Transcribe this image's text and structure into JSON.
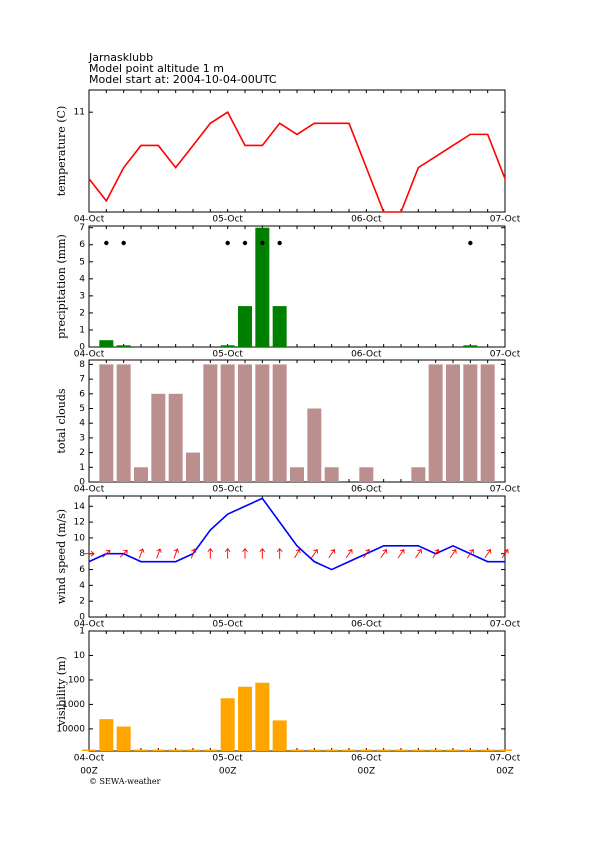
{
  "header": {
    "station": "Jarnasklubb",
    "altitude": "Model point altitude  1 m",
    "start": "Model start at: 2004-10-04-00UTC"
  },
  "footer": "© SEWA-weather",
  "chart_data": [
    {
      "type": "line",
      "y_label": "temperature (C)",
      "color": "#ff0000",
      "categories": [
        "04-Oct",
        null,
        null,
        null,
        null,
        null,
        null,
        null,
        "05-Oct",
        null,
        null,
        null,
        null,
        null,
        null,
        null,
        "06-Oct",
        null,
        null,
        null,
        null,
        null,
        null,
        null,
        "07-Oct"
      ],
      "values": [
        5,
        3,
        6,
        8,
        8,
        6,
        8,
        10,
        11,
        8,
        8,
        10,
        9,
        10,
        10,
        10,
        6,
        2,
        2,
        6,
        7,
        8,
        9,
        9,
        5
      ],
      "ylim": [
        2,
        13
      ],
      "yticks": [
        11
      ]
    },
    {
      "type": "bar",
      "y_label": "precipitation (mm)",
      "color": "#008000",
      "symbol_color": "#000000",
      "categories": [
        "04-Oct",
        null,
        null,
        null,
        null,
        null,
        null,
        null,
        "05-Oct",
        null,
        null,
        null,
        null,
        null,
        null,
        null,
        "06-Oct",
        null,
        null,
        null,
        null,
        null,
        null,
        null,
        "07-Oct"
      ],
      "values": [
        0,
        0.4,
        0.1,
        0,
        0,
        0,
        0,
        0,
        0.1,
        2.4,
        7,
        2.4,
        0,
        0,
        0,
        0,
        0,
        0,
        0,
        0,
        0,
        0,
        0.1,
        0,
        0
      ],
      "ylim": [
        0,
        7.1
      ],
      "yticks": [
        0,
        1,
        2,
        3,
        4,
        5,
        6,
        7
      ]
    },
    {
      "type": "bar",
      "y_label": "total clouds",
      "color": "#bc8f8f",
      "categories": [
        "04-Oct",
        null,
        null,
        null,
        null,
        null,
        null,
        null,
        "05-Oct",
        null,
        null,
        null,
        null,
        null,
        null,
        null,
        "06-Oct",
        null,
        null,
        null,
        null,
        null,
        null,
        null,
        "07-Oct"
      ],
      "values": [
        0,
        8,
        8,
        1,
        6,
        6,
        2,
        8,
        8,
        8,
        8,
        8,
        1,
        5,
        1,
        0,
        1,
        0,
        0,
        1,
        8,
        8,
        8,
        8,
        0
      ],
      "ylim": [
        0,
        8.3
      ],
      "yticks": [
        0,
        1,
        2,
        3,
        4,
        5,
        6,
        7,
        8
      ]
    },
    {
      "type": "line",
      "y_label": "wind speed (m/s)",
      "color": "#0000ff",
      "categories": [
        "04-Oct",
        null,
        null,
        null,
        null,
        null,
        null,
        null,
        "05-Oct",
        null,
        null,
        null,
        null,
        null,
        null,
        null,
        "06-Oct",
        null,
        null,
        null,
        null,
        null,
        null,
        null,
        "07-Oct"
      ],
      "values": [
        7,
        8,
        8,
        7,
        7,
        7,
        8,
        11,
        13,
        14,
        15,
        12,
        9,
        7,
        6,
        7,
        8,
        9,
        9,
        9,
        8,
        9,
        8,
        7,
        7
      ],
      "arrows": {
        "color": "#ff0000",
        "directions": [
          90,
          45,
          45,
          20,
          20,
          20,
          20,
          0,
          0,
          0,
          0,
          0,
          30,
          35,
          35,
          35,
          35,
          35,
          35,
          35,
          35,
          35,
          35,
          35,
          35
        ]
      },
      "ylim": [
        0,
        15.3
      ],
      "yticks": [
        0,
        2,
        4,
        6,
        8,
        10,
        12,
        14
      ]
    },
    {
      "type": "bar",
      "y_label": "visibility (m)",
      "color": "#ffa500",
      "log_scale": true,
      "inverted": true,
      "categories": [
        "04-Oct",
        null,
        null,
        null,
        null,
        null,
        null,
        null,
        "05-Oct",
        null,
        null,
        null,
        null,
        null,
        null,
        null,
        "06-Oct",
        null,
        null,
        null,
        null,
        null,
        null,
        null,
        "07-Oct"
      ],
      "sub_labels": [
        "00Z",
        null,
        null,
        null,
        null,
        null,
        null,
        null,
        "00Z",
        null,
        null,
        null,
        null,
        null,
        null,
        null,
        "00Z",
        null,
        null,
        null,
        null,
        null,
        null,
        null,
        "00Z"
      ],
      "values": [
        70000,
        4000,
        8000,
        70000,
        70000,
        70000,
        70000,
        70000,
        560,
        190,
        130,
        4500,
        70000,
        70000,
        70000,
        70000,
        70000,
        70000,
        70000,
        70000,
        70000,
        70000,
        70000,
        70000,
        70000
      ],
      "ylim": [
        1,
        80000
      ],
      "yticks": [
        1,
        10,
        100,
        1000,
        10000
      ]
    }
  ]
}
